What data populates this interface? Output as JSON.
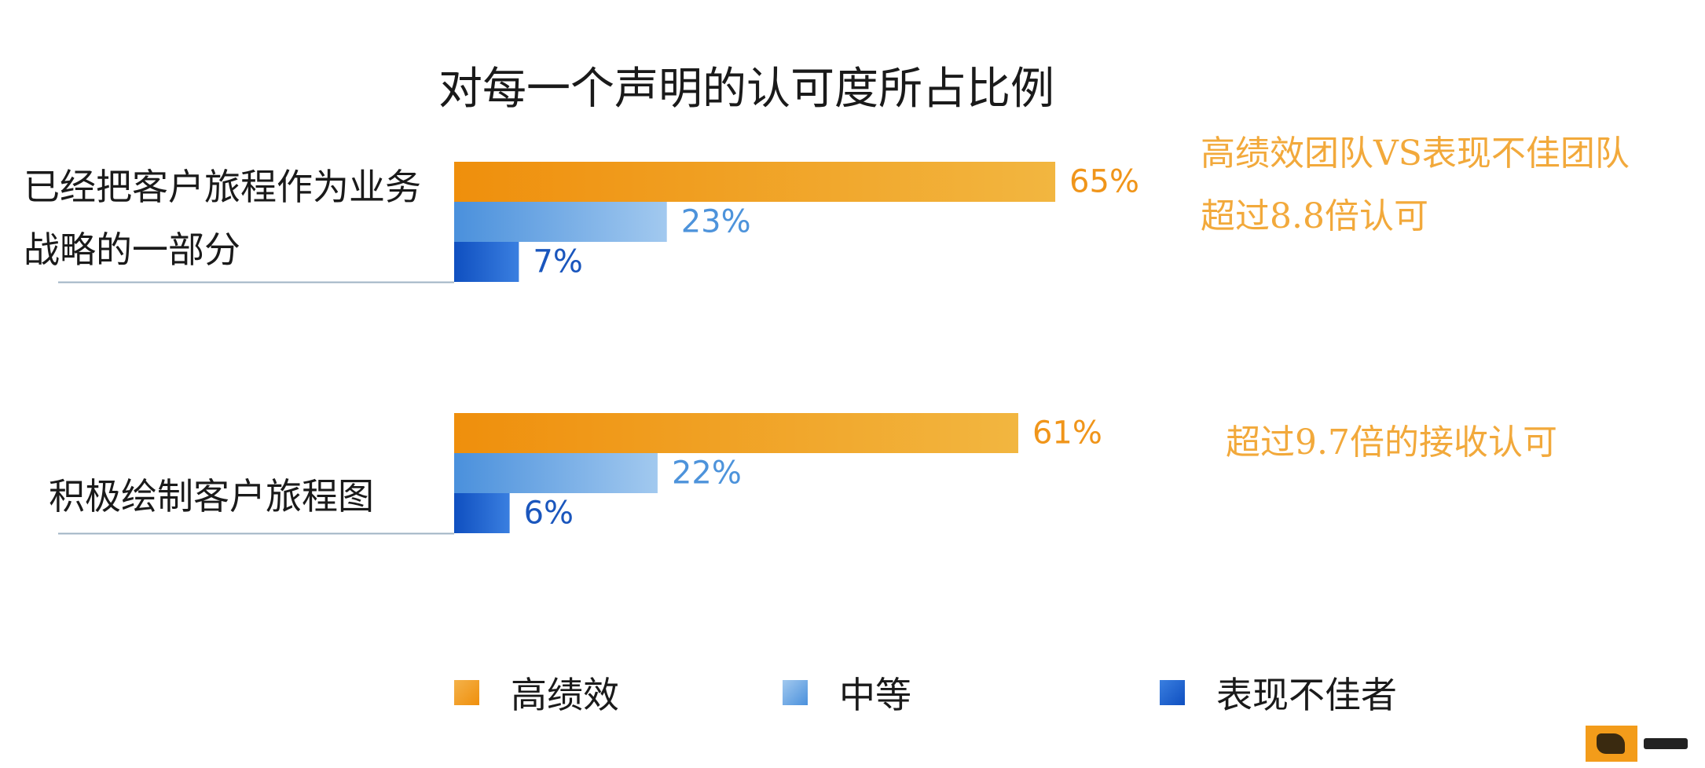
{
  "chart_data": {
    "type": "bar",
    "orientation": "horizontal",
    "title": "对每一个声明的认可度所占比例",
    "categories": [
      [
        "已经把客户旅程作为业务",
        "战略的一部分"
      ],
      [
        "积极绘制客户旅程图"
      ]
    ],
    "series": [
      {
        "name": "高绩效",
        "values": [
          65,
          61
        ],
        "labels": [
          "65%",
          "61%"
        ],
        "color": "#ef8f0c",
        "color_end": "#f2b640"
      },
      {
        "name": "中等",
        "values": [
          23,
          22
        ],
        "labels": [
          "23%",
          "22%"
        ],
        "color": "#4a90dc",
        "color_end": "#a2c9ef"
      },
      {
        "name": "表现不佳者",
        "values": [
          7,
          6
        ],
        "labels": [
          "7%",
          "6%"
        ],
        "color": "#0f4fc0",
        "color_end": "#3a7fe0"
      }
    ],
    "xlim": [
      0,
      100
    ],
    "legend_position": "bottom",
    "grid": false,
    "annotations": [
      [
        "高绩效团队VS表现不佳团队",
        "超过8.8倍认可"
      ],
      [
        "超过9.7倍的接收认可"
      ]
    ]
  }
}
